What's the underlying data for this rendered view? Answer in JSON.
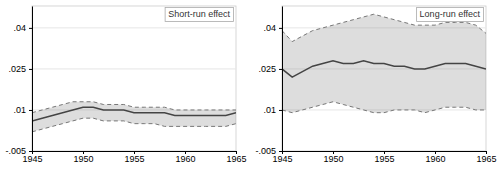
{
  "chart_data": [
    {
      "type": "band",
      "title": "Short-run effect",
      "x": [
        1945,
        1946,
        1947,
        1948,
        1949,
        1950,
        1951,
        1952,
        1953,
        1954,
        1955,
        1956,
        1957,
        1958,
        1959,
        1960,
        1961,
        1962,
        1963,
        1964,
        1965
      ],
      "series": [
        {
          "type": "line",
          "color": "#444444",
          "line_style": "solid",
          "values": [
            0.006,
            0.007,
            0.008,
            0.009,
            0.01,
            0.011,
            0.011,
            0.01,
            0.01,
            0.01,
            0.009,
            0.009,
            0.009,
            0.009,
            0.008,
            0.008,
            0.008,
            0.008,
            0.008,
            0.008,
            0.009
          ]
        },
        {
          "type": "line",
          "color": "#777777",
          "line_style": "dashed",
          "values": [
            0.009,
            0.01,
            0.011,
            0.012,
            0.013,
            0.013,
            0.013,
            0.012,
            0.012,
            0.012,
            0.011,
            0.011,
            0.011,
            0.011,
            0.01,
            0.01,
            0.01,
            0.01,
            0.01,
            0.01,
            0.01
          ]
        },
        {
          "type": "line",
          "color": "#777777",
          "line_style": "dashed",
          "values": [
            0.002,
            0.003,
            0.004,
            0.005,
            0.006,
            0.007,
            0.007,
            0.006,
            0.006,
            0.006,
            0.005,
            0.005,
            0.005,
            0.004,
            0.004,
            0.004,
            0.004,
            0.004,
            0.004,
            0.004,
            0.005
          ]
        }
      ],
      "xlim": [
        1945,
        1965
      ],
      "xticks": [
        1945,
        1950,
        1955,
        1960,
        1965
      ],
      "ylim": [
        -0.005,
        0.048
      ],
      "yticks": [
        {
          "value": -0.005,
          "label": "-.005"
        },
        {
          "value": 0.01,
          "label": ".01"
        },
        {
          "value": 0.025,
          "label": ".025"
        },
        {
          "value": 0.04,
          "label": ".04"
        }
      ],
      "grid": true
    },
    {
      "type": "band",
      "title": "Long-run effect",
      "x": [
        1945,
        1946,
        1947,
        1948,
        1949,
        1950,
        1951,
        1952,
        1953,
        1954,
        1955,
        1956,
        1957,
        1958,
        1959,
        1960,
        1961,
        1962,
        1963,
        1964,
        1965
      ],
      "series": [
        {
          "type": "line",
          "color": "#444444",
          "line_style": "solid",
          "values": [
            0.025,
            0.022,
            0.024,
            0.026,
            0.027,
            0.028,
            0.027,
            0.027,
            0.028,
            0.027,
            0.027,
            0.026,
            0.026,
            0.025,
            0.025,
            0.026,
            0.027,
            0.027,
            0.027,
            0.026,
            0.025
          ]
        },
        {
          "type": "line",
          "color": "#777777",
          "line_style": "dashed",
          "values": [
            0.039,
            0.035,
            0.037,
            0.039,
            0.04,
            0.041,
            0.042,
            0.043,
            0.044,
            0.045,
            0.044,
            0.043,
            0.042,
            0.041,
            0.041,
            0.041,
            0.042,
            0.042,
            0.042,
            0.041,
            0.038
          ]
        },
        {
          "type": "line",
          "color": "#777777",
          "line_style": "dashed",
          "values": [
            0.01,
            0.009,
            0.01,
            0.011,
            0.012,
            0.013,
            0.012,
            0.011,
            0.01,
            0.009,
            0.009,
            0.01,
            0.01,
            0.01,
            0.009,
            0.01,
            0.011,
            0.011,
            0.011,
            0.01,
            0.01
          ]
        }
      ],
      "xlim": [
        1945,
        1965
      ],
      "xticks": [
        1945,
        1950,
        1955,
        1960,
        1965
      ],
      "ylim": [
        -0.005,
        0.048
      ],
      "yticks": [
        {
          "value": -0.005,
          "label": "-.005"
        },
        {
          "value": 0.01,
          "label": ".01"
        },
        {
          "value": 0.025,
          "label": ".025"
        },
        {
          "value": 0.04,
          "label": ".04"
        }
      ],
      "grid": true
    }
  ]
}
